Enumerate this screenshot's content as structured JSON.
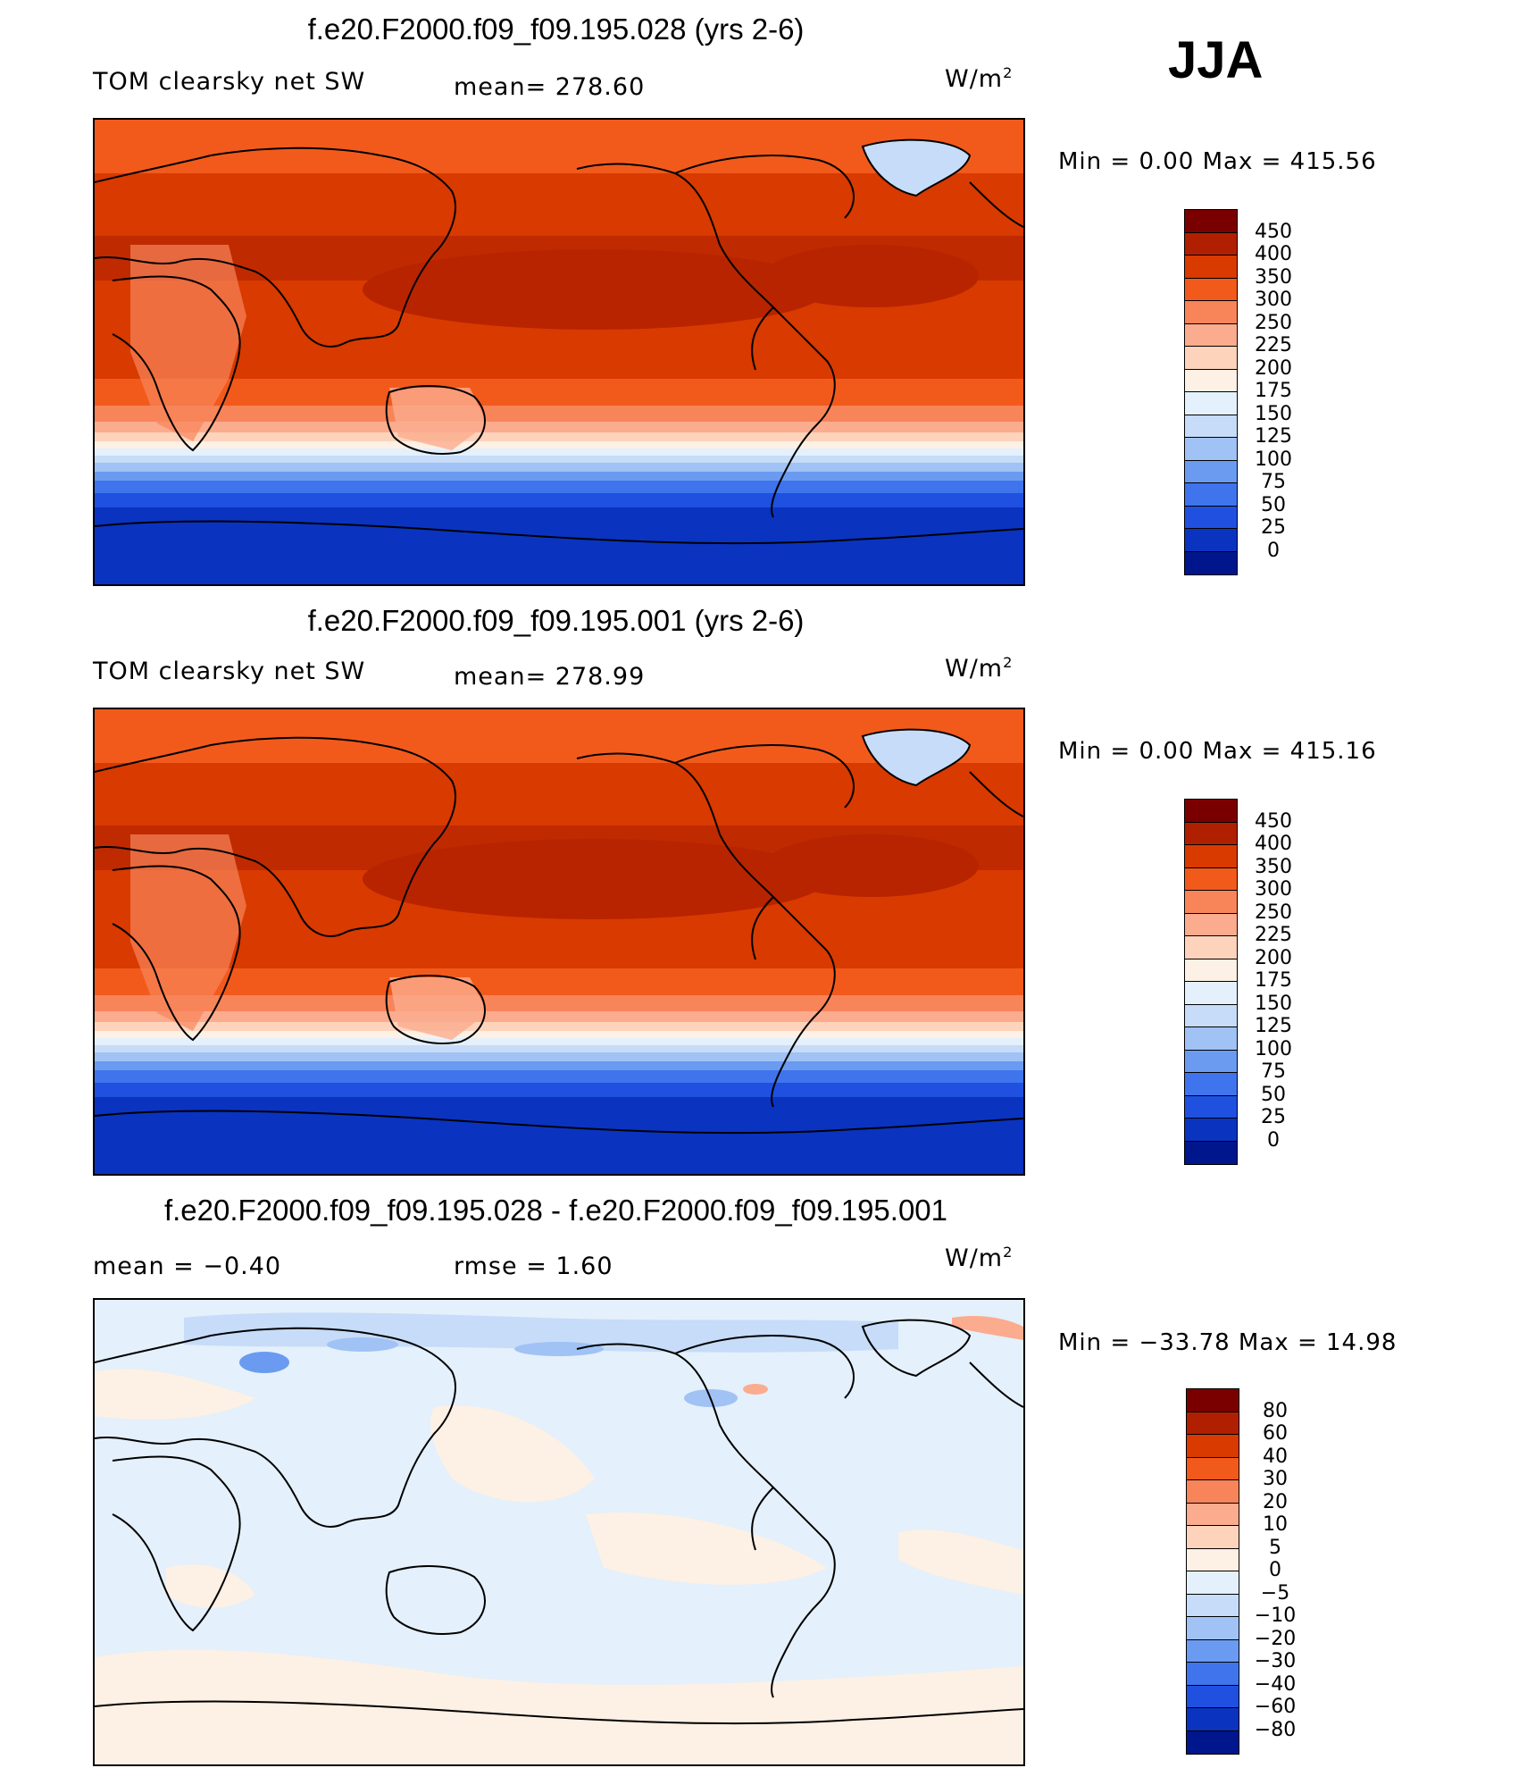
{
  "season": "JJA",
  "panels": [
    {
      "title": "f.e20.F2000.f09_f09.195.028 (yrs 2-6)",
      "left_text": "TOM clearsky net SW",
      "mid_text": "mean= 278.60",
      "units": "W/m",
      "units_exp": "2",
      "minmax": "Min =    0.00 Max = 415.56"
    },
    {
      "title": "f.e20.F2000.f09_f09.195.001 (yrs 2-6)",
      "left_text": "TOM clearsky net SW",
      "mid_text": "mean= 278.99",
      "units": "W/m",
      "units_exp": "2",
      "minmax": "Min =    0.00 Max = 415.16"
    },
    {
      "title": "f.e20.F2000.f09_f09.195.028 - f.e20.F2000.f09_f09.195.001",
      "left_text": "mean =   −0.40",
      "mid_text": "rmse =    1.60",
      "units": "W/m",
      "units_exp": "2",
      "minmax": "Min = −33.78 Max =  14.98"
    }
  ],
  "colorbars": {
    "absolute": {
      "labels": [
        "450",
        "400",
        "350",
        "300",
        "250",
        "225",
        "200",
        "175",
        "150",
        "125",
        "100",
        "75",
        "50",
        "25",
        "0"
      ],
      "colors": [
        "#7a0000",
        "#b02000",
        "#d83a00",
        "#f25a1c",
        "#f8845a",
        "#fbac8e",
        "#fdd3bb",
        "#fdf0e4",
        "#e4f0fb",
        "#c6dcf8",
        "#a0c2f5",
        "#6a9bf0",
        "#3f74ec",
        "#1f50e0",
        "#0a33c0",
        "#00168c"
      ]
    },
    "difference": {
      "labels": [
        "80",
        "60",
        "40",
        "30",
        "20",
        "10",
        "5",
        "0",
        "−5",
        "−10",
        "−20",
        "−30",
        "−40",
        "−60",
        "−80"
      ],
      "colors": [
        "#7a0000",
        "#b02000",
        "#d83a00",
        "#f25a1c",
        "#f8845a",
        "#fbac8e",
        "#fdd3bb",
        "#fdf0e4",
        "#e4f0fb",
        "#c6dcf8",
        "#a0c2f5",
        "#6a9bf0",
        "#3f74ec",
        "#1f50e0",
        "#0a33c0",
        "#00168c"
      ]
    }
  }
}
